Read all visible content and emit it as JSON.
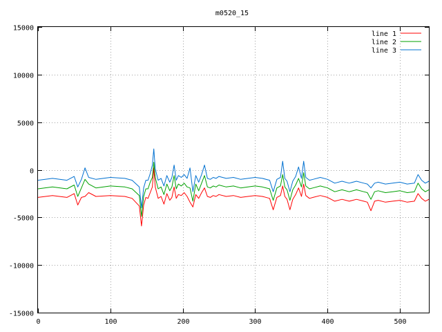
{
  "chart_data": {
    "type": "line",
    "title": "m0520_15",
    "xlabel": "",
    "ylabel": "",
    "xlim": [
      0,
      540
    ],
    "ylim": [
      -15000,
      15000
    ],
    "x_ticks": [
      0,
      100,
      200,
      300,
      400,
      500
    ],
    "y_ticks": [
      -15000,
      -10000,
      -5000,
      0,
      5000,
      10000,
      15000
    ],
    "x_tick_labels": [
      "0",
      "100",
      "200",
      "300",
      "400",
      "500"
    ],
    "y_tick_labels": [
      "-15000",
      "-10000",
      "-5000",
      "0",
      "5000",
      "10000",
      "15000"
    ],
    "grid": true,
    "legend_position": "top-right",
    "series": [
      {
        "name": "line 1",
        "color": "#ff0000",
        "x": [
          0,
          20,
          40,
          50,
          55,
          60,
          65,
          70,
          80,
          100,
          120,
          130,
          140,
          143,
          146,
          149,
          152,
          155,
          158,
          160,
          162,
          166,
          170,
          174,
          178,
          182,
          185,
          188,
          191,
          194,
          198,
          202,
          206,
          210,
          214,
          218,
          222,
          226,
          230,
          234,
          238,
          242,
          246,
          250,
          260,
          270,
          280,
          290,
          300,
          310,
          320,
          325,
          330,
          335,
          338,
          341,
          344,
          348,
          352,
          356,
          360,
          364,
          367,
          370,
          375,
          380,
          390,
          400,
          410,
          420,
          430,
          440,
          450,
          455,
          460,
          465,
          470,
          480,
          490,
          500,
          510,
          520,
          525,
          530,
          535,
          540
        ],
        "y": [
          -2900,
          -2700,
          -2900,
          -2500,
          -3700,
          -2900,
          -2800,
          -2400,
          -2800,
          -2700,
          -2800,
          -3000,
          -3800,
          -5900,
          -3700,
          -2900,
          -3000,
          -2400,
          -1800,
          200,
          -1800,
          -3000,
          -2800,
          -3600,
          -2500,
          -3200,
          -2900,
          -1800,
          -3000,
          -2600,
          -2700,
          -2400,
          -2800,
          -3400,
          -3900,
          -2600,
          -3000,
          -2400,
          -1900,
          -2800,
          -2900,
          -2700,
          -2800,
          -2600,
          -2800,
          -2700,
          -2900,
          -2800,
          -2700,
          -2800,
          -3000,
          -4200,
          -2900,
          -2700,
          -1700,
          -2800,
          -3100,
          -4200,
          -3100,
          -2600,
          -1900,
          -2800,
          -1500,
          -2700,
          -3000,
          -2900,
          -2700,
          -2900,
          -3300,
          -3100,
          -3300,
          -3100,
          -3300,
          -3400,
          -4300,
          -3300,
          -3200,
          -3400,
          -3300,
          -3200,
          -3400,
          -3300,
          -2500,
          -3000,
          -3300,
          -3100
        ]
      },
      {
        "name": "line 2",
        "color": "#00a000",
        "x": [
          0,
          20,
          40,
          50,
          55,
          60,
          65,
          70,
          80,
          100,
          120,
          130,
          140,
          143,
          146,
          149,
          152,
          155,
          158,
          160,
          162,
          166,
          170,
          174,
          178,
          182,
          185,
          188,
          191,
          194,
          198,
          202,
          206,
          210,
          214,
          218,
          222,
          226,
          230,
          234,
          238,
          242,
          246,
          250,
          260,
          270,
          280,
          290,
          300,
          310,
          320,
          325,
          330,
          335,
          338,
          341,
          344,
          348,
          352,
          356,
          360,
          364,
          367,
          370,
          375,
          380,
          390,
          400,
          410,
          420,
          430,
          440,
          450,
          455,
          460,
          465,
          470,
          480,
          490,
          500,
          510,
          520,
          525,
          530,
          535,
          540
        ],
        "y": [
          -2000,
          -1800,
          -2000,
          -1600,
          -2800,
          -1900,
          -1000,
          -1500,
          -1900,
          -1700,
          -1800,
          -2000,
          -2700,
          -4900,
          -2800,
          -2000,
          -2000,
          -1300,
          -800,
          800,
          -800,
          -2000,
          -1800,
          -2600,
          -1500,
          -2200,
          -1800,
          -600,
          -2000,
          -1500,
          -1700,
          -1400,
          -1800,
          -1900,
          -3300,
          -1500,
          -2200,
          -1400,
          -600,
          -1800,
          -1900,
          -1700,
          -1800,
          -1600,
          -1800,
          -1700,
          -1900,
          -1800,
          -1700,
          -1800,
          -2000,
          -3200,
          -1900,
          -1700,
          -500,
          -1800,
          -2100,
          -3200,
          -2100,
          -1600,
          -900,
          -1800,
          -300,
          -1700,
          -2000,
          -1900,
          -1700,
          -1900,
          -2300,
          -2100,
          -2300,
          -2100,
          -2300,
          -2400,
          -3100,
          -2300,
          -2200,
          -2400,
          -2300,
          -2200,
          -2400,
          -2300,
          -1400,
          -2000,
          -2300,
          -2100
        ]
      },
      {
        "name": "line 3",
        "color": "#0070d0",
        "x": [
          0,
          20,
          40,
          50,
          55,
          60,
          65,
          70,
          80,
          100,
          120,
          130,
          140,
          143,
          146,
          149,
          152,
          155,
          158,
          160,
          162,
          166,
          170,
          174,
          178,
          182,
          185,
          188,
          191,
          194,
          198,
          202,
          206,
          210,
          214,
          218,
          222,
          226,
          230,
          234,
          238,
          242,
          246,
          250,
          260,
          270,
          280,
          290,
          300,
          310,
          320,
          325,
          330,
          335,
          338,
          341,
          344,
          348,
          352,
          356,
          360,
          364,
          367,
          370,
          375,
          380,
          390,
          400,
          410,
          420,
          430,
          440,
          450,
          455,
          460,
          465,
          470,
          480,
          490,
          500,
          510,
          520,
          525,
          530,
          535,
          540
        ],
        "y": [
          -1100,
          -900,
          -1100,
          -700,
          -1800,
          -1000,
          200,
          -800,
          -1000,
          -800,
          -900,
          -1100,
          -1800,
          -4000,
          -1900,
          -1100,
          -1100,
          -400,
          500,
          2200,
          100,
          -1100,
          -900,
          -1700,
          -600,
          -1300,
          -800,
          500,
          -1100,
          -600,
          -800,
          -500,
          -900,
          200,
          -2300,
          -600,
          -1300,
          -500,
          500,
          -900,
          -1000,
          -800,
          -900,
          -700,
          -900,
          -800,
          -1000,
          -900,
          -800,
          -900,
          -1100,
          -2300,
          -1000,
          -800,
          900,
          -900,
          -1200,
          -2300,
          -1200,
          -700,
          300,
          -900,
          900,
          -800,
          -1100,
          -1000,
          -800,
          -1000,
          -1400,
          -1200,
          -1400,
          -1200,
          -1400,
          -1500,
          -1900,
          -1400,
          -1300,
          -1500,
          -1400,
          -1300,
          -1500,
          -1400,
          -500,
          -1100,
          -1400,
          -1200
        ]
      }
    ]
  }
}
